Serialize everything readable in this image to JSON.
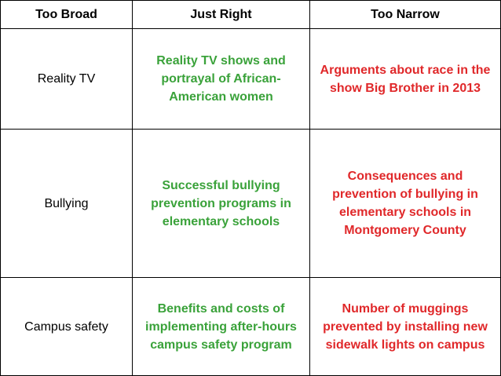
{
  "headers": [
    "Too Broad",
    "Just Right",
    "Too Narrow"
  ],
  "rows": [
    {
      "too_broad": "Reality TV",
      "just_right": "Reality TV shows and portrayal of African-American women",
      "too_narrow": "Arguments about race in the show Big Brother in 2013"
    },
    {
      "too_broad": "Bullying",
      "just_right": "Successful bullying prevention programs in elementary schools",
      "too_narrow": "Consequences and prevention of bullying in elementary schools in Montgomery County"
    },
    {
      "too_broad": "Campus safety",
      "just_right": "Benefits and costs of implementing after-hours campus safety program",
      "too_narrow": "Number of muggings prevented by installing new sidewalk lights on campus"
    }
  ],
  "colors": {
    "just_right_text": "#3aa23a",
    "too_narrow_text": "#e0282a",
    "border": "#000000"
  }
}
